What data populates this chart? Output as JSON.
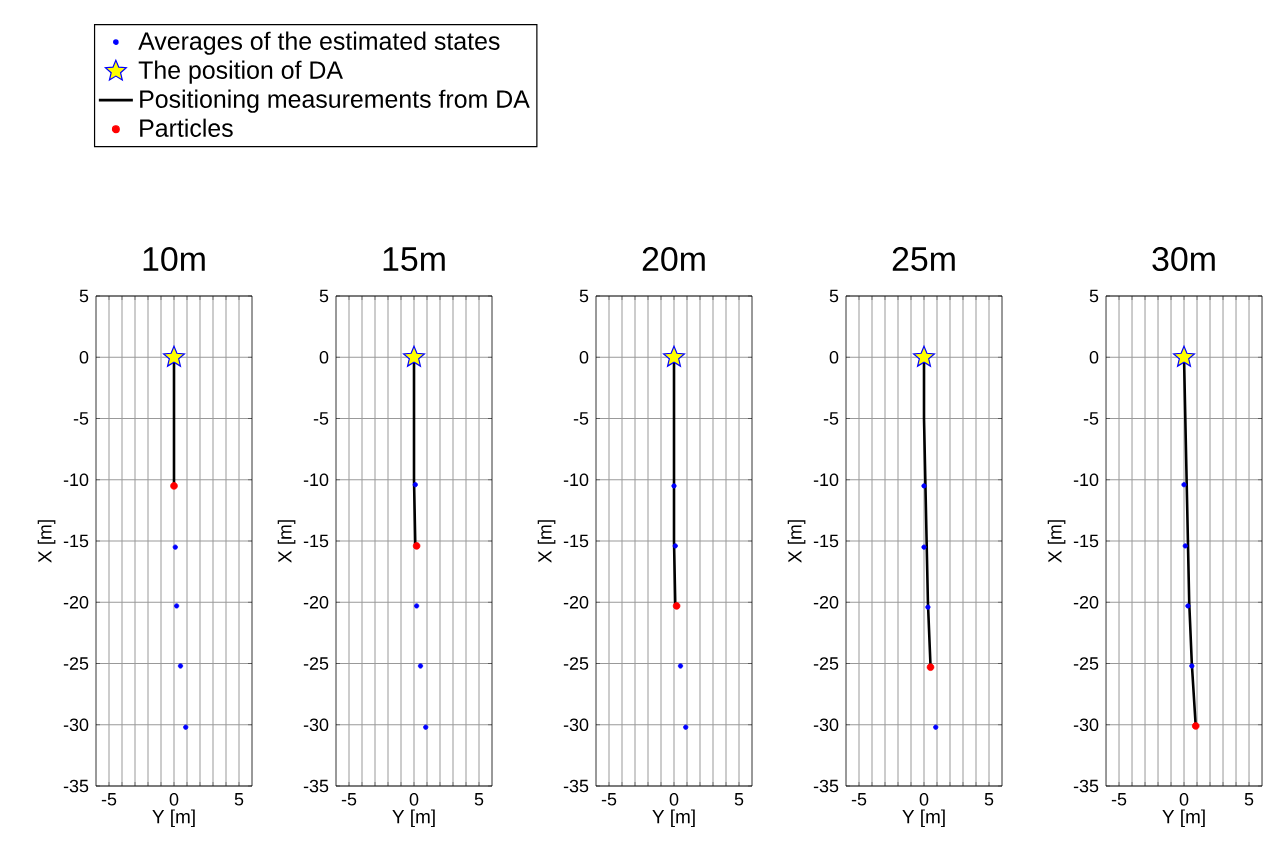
{
  "chart_data": [
    {
      "type": "scatter",
      "title": "10m",
      "xlabel": "Y [m]",
      "ylabel": "X [m]",
      "xlim": [
        -6,
        6
      ],
      "ylim": [
        -35,
        5
      ],
      "xticks": [
        -5,
        {
          "value": -4,
          "label": null
        },
        {
          "value": -3,
          "label": null
        },
        {
          "value": -2,
          "label": null
        },
        {
          "value": -1,
          "label": null
        },
        0,
        {
          "value": 1,
          "label": null
        },
        {
          "value": 2,
          "label": null
        },
        {
          "value": 3,
          "label": null
        },
        {
          "value": 4,
          "label": null
        },
        5
      ],
      "yticks": [
        -35,
        -30,
        -25,
        -20,
        -15,
        -10,
        -5,
        0,
        5
      ],
      "grid": true,
      "legend": "top",
      "series": [
        {
          "name": "Averages of the estimated states",
          "marker": "circle",
          "color": "#0000ff",
          "x": [
            0.1,
            0.2,
            0.5,
            0.9
          ],
          "values": [
            -15.5,
            -20.3,
            -25.2,
            -30.2
          ]
        },
        {
          "name": "The position of DA",
          "marker": "star",
          "color": "#ffff00",
          "x": [
            0
          ],
          "values": [
            0
          ]
        },
        {
          "name": "Positioning measurements from DA",
          "type": "line",
          "marker": "none",
          "color": "#000000",
          "x": [
            0,
            0,
            0
          ],
          "values": [
            0,
            -5,
            -10.5
          ]
        },
        {
          "name": "Particles",
          "marker": "circle",
          "color": "#ff0000",
          "x": [
            0
          ],
          "values": [
            -10.5
          ]
        }
      ]
    },
    {
      "type": "scatter",
      "title": "15m",
      "xlabel": "Y [m]",
      "ylabel": "X [m]",
      "xlim": [
        -6,
        6
      ],
      "ylim": [
        -35,
        5
      ],
      "xticks": [
        -5,
        {
          "value": -4,
          "label": null
        },
        {
          "value": -3,
          "label": null
        },
        {
          "value": -2,
          "label": null
        },
        {
          "value": -1,
          "label": null
        },
        0,
        {
          "value": 1,
          "label": null
        },
        {
          "value": 2,
          "label": null
        },
        {
          "value": 3,
          "label": null
        },
        {
          "value": 4,
          "label": null
        },
        5
      ],
      "yticks": [
        -35,
        -30,
        -25,
        -20,
        -15,
        -10,
        -5,
        0,
        5
      ],
      "grid": true,
      "series": [
        {
          "type": "line",
          "marker": "none",
          "color": "#000000",
          "x": [
            0,
            0,
            0,
            0.1
          ],
          "values": [
            0,
            -5,
            -10,
            -15.3
          ]
        },
        {
          "type": "scatter",
          "marker": "circle",
          "color": "#0000ff",
          "x": [
            0.1,
            0.2,
            0.5,
            0.9
          ],
          "values": [
            -10.4,
            -20.3,
            -25.2,
            -30.2
          ]
        },
        {
          "type": "scatter",
          "marker": "star",
          "color": "#ffff00",
          "x": [
            0
          ],
          "values": [
            0
          ]
        },
        {
          "type": "scatter",
          "marker": "circle",
          "color": "#ff0000",
          "x": [
            0.2
          ],
          "values": [
            -15.4
          ]
        }
      ]
    },
    {
      "type": "scatter",
      "title": "20m",
      "xlabel": "Y [m]",
      "ylabel": "X [m]",
      "xlim": [
        -6,
        6
      ],
      "ylim": [
        -35,
        5
      ],
      "xticks": [
        -5,
        {
          "value": -4,
          "label": null
        },
        {
          "value": -3,
          "label": null
        },
        {
          "value": -2,
          "label": null
        },
        {
          "value": -1,
          "label": null
        },
        0,
        {
          "value": 1,
          "label": null
        },
        {
          "value": 2,
          "label": null
        },
        {
          "value": 3,
          "label": null
        },
        {
          "value": 4,
          "label": null
        },
        5
      ],
      "yticks": [
        -35,
        -30,
        -25,
        -20,
        -15,
        -10,
        -5,
        0,
        5
      ],
      "grid": true,
      "series": [
        {
          "type": "line",
          "marker": "none",
          "color": "#000000",
          "x": [
            0,
            0,
            0,
            0,
            0.1
          ],
          "values": [
            0,
            -5,
            -10,
            -15,
            -20.3
          ]
        },
        {
          "type": "scatter",
          "marker": "circle",
          "color": "#0000ff",
          "x": [
            0,
            0.1,
            0.5,
            0.9
          ],
          "values": [
            -10.5,
            -15.4,
            -25.2,
            -30.2
          ]
        },
        {
          "type": "scatter",
          "marker": "star",
          "color": "#ffff00",
          "x": [
            0
          ],
          "values": [
            0
          ]
        },
        {
          "type": "scatter",
          "marker": "circle",
          "color": "#ff0000",
          "x": [
            0.2
          ],
          "values": [
            -20.3
          ]
        }
      ]
    },
    {
      "type": "scatter",
      "title": "25m",
      "xlabel": "Y [m]",
      "ylabel": "X [m]",
      "xlim": [
        -6,
        6
      ],
      "ylim": [
        -35,
        5
      ],
      "xticks": [
        -5,
        {
          "value": -4,
          "label": null
        },
        {
          "value": -3,
          "label": null
        },
        {
          "value": -2,
          "label": null
        },
        {
          "value": -1,
          "label": null
        },
        0,
        {
          "value": 1,
          "label": null
        },
        {
          "value": 2,
          "label": null
        },
        {
          "value": 3,
          "label": null
        },
        {
          "value": 4,
          "label": null
        },
        5
      ],
      "yticks": [
        -35,
        -30,
        -25,
        -20,
        -15,
        -10,
        -5,
        0,
        5
      ],
      "grid": true,
      "series": [
        {
          "type": "line",
          "marker": "none",
          "color": "#000000",
          "x": [
            0,
            0,
            0.1,
            0.2,
            0.3,
            0.5
          ],
          "values": [
            0,
            -5,
            -10,
            -15,
            -20,
            -25.2
          ]
        },
        {
          "type": "scatter",
          "marker": "circle",
          "color": "#0000ff",
          "x": [
            0,
            0,
            0.3,
            0.9
          ],
          "values": [
            -10.5,
            -15.5,
            -20.4,
            -30.2
          ]
        },
        {
          "type": "scatter",
          "marker": "star",
          "color": "#ffff00",
          "x": [
            0
          ],
          "values": [
            0
          ]
        },
        {
          "type": "scatter",
          "marker": "circle",
          "color": "#ff0000",
          "x": [
            0.5
          ],
          "values": [
            -25.3
          ]
        }
      ]
    },
    {
      "type": "scatter",
      "title": "30m",
      "xlabel": "Y [m]",
      "ylabel": "X [m]",
      "xlim": [
        -6,
        6
      ],
      "ylim": [
        -35,
        5
      ],
      "xticks": [
        -5,
        {
          "value": -4,
          "label": null
        },
        {
          "value": -3,
          "label": null
        },
        {
          "value": -2,
          "label": null
        },
        {
          "value": -1,
          "label": null
        },
        0,
        {
          "value": 1,
          "label": null
        },
        {
          "value": 2,
          "label": null
        },
        {
          "value": 3,
          "label": null
        },
        {
          "value": 4,
          "label": null
        },
        5
      ],
      "yticks": [
        -35,
        -30,
        -25,
        -20,
        -15,
        -10,
        -5,
        0,
        5
      ],
      "grid": true,
      "series": [
        {
          "type": "line",
          "marker": "none",
          "color": "#000000",
          "x": [
            0,
            0.1,
            0.2,
            0.3,
            0.4,
            0.6,
            0.9
          ],
          "values": [
            0,
            -5,
            -10,
            -15,
            -20,
            -25,
            -30.1
          ]
        },
        {
          "type": "scatter",
          "marker": "circle",
          "color": "#0000ff",
          "x": [
            0,
            0.1,
            0.3,
            0.6
          ],
          "values": [
            -10.4,
            -15.4,
            -20.3,
            -25.2
          ]
        },
        {
          "type": "scatter",
          "marker": "star",
          "color": "#ffff00",
          "x": [
            0
          ],
          "values": [
            0
          ]
        },
        {
          "type": "scatter",
          "marker": "circle",
          "color": "#ff0000",
          "x": [
            0.9
          ],
          "values": [
            -30.1
          ]
        }
      ]
    }
  ]
}
